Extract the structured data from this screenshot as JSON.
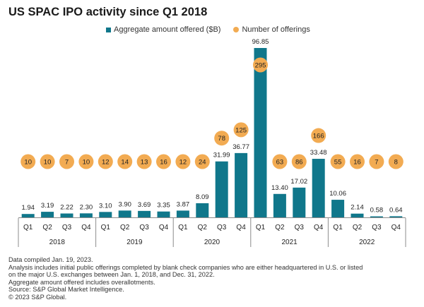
{
  "title": "US SPAC IPO activity since Q1 2018",
  "legend": {
    "amount_label": "Aggregate amount offered ($B)",
    "count_label": "Number of offerings"
  },
  "colors": {
    "bar": "#10778b",
    "dot": "#f2ab52",
    "axis": "#8c8c8c"
  },
  "notes": [
    "Data compiled Jan. 19, 2023.",
    "Analysis includes initial public offerings completed by blank check companies who are either headquartered in U.S. or listed",
    "on the major U.S. exchanges between Jan. 1, 2018, and Dec. 31, 2022.",
    "Aggregate amount offered includes overallotments.",
    "Source: S&P Global Market Intelligence.",
    "© 2023 S&P Global."
  ],
  "chart_data": {
    "type": "bar",
    "title": "US SPAC IPO activity since Q1 2018",
    "categories": [
      "Q1",
      "Q2",
      "Q3",
      "Q4",
      "Q1",
      "Q2",
      "Q3",
      "Q4",
      "Q1",
      "Q2",
      "Q3",
      "Q4",
      "Q1",
      "Q2",
      "Q3",
      "Q4",
      "Q1",
      "Q2",
      "Q3",
      "Q4"
    ],
    "years": [
      {
        "label": "2018",
        "quarters": 4
      },
      {
        "label": "2019",
        "quarters": 4
      },
      {
        "label": "2020",
        "quarters": 4
      },
      {
        "label": "2021",
        "quarters": 4
      },
      {
        "label": "2022",
        "quarters": 4
      }
    ],
    "series": [
      {
        "name": "Aggregate amount offered ($B)",
        "kind": "bar",
        "values": [
          1.94,
          3.19,
          2.22,
          2.3,
          3.1,
          3.9,
          3.69,
          3.35,
          3.87,
          8.09,
          31.99,
          36.77,
          96.85,
          13.4,
          17.02,
          33.48,
          10.06,
          2.14,
          0.58,
          0.64
        ],
        "labels": [
          "1.94",
          "3.19",
          "2.22",
          "2.30",
          "3.10",
          "3.90",
          "3.69",
          "3.35",
          "3.87",
          "8.09",
          "31.99",
          "36.77",
          "96.85",
          "13.40",
          "17.02",
          "33.48",
          "10.06",
          "2.14",
          "0.58",
          "0.64"
        ]
      },
      {
        "name": "Number of offerings",
        "kind": "dot",
        "values": [
          10,
          10,
          7,
          10,
          12,
          14,
          13,
          16,
          12,
          24,
          78,
          125,
          295,
          63,
          86,
          166,
          55,
          16,
          7,
          8
        ]
      }
    ],
    "ylim_amount": [
      0,
      100
    ],
    "grid": false,
    "legend_position": "top"
  }
}
